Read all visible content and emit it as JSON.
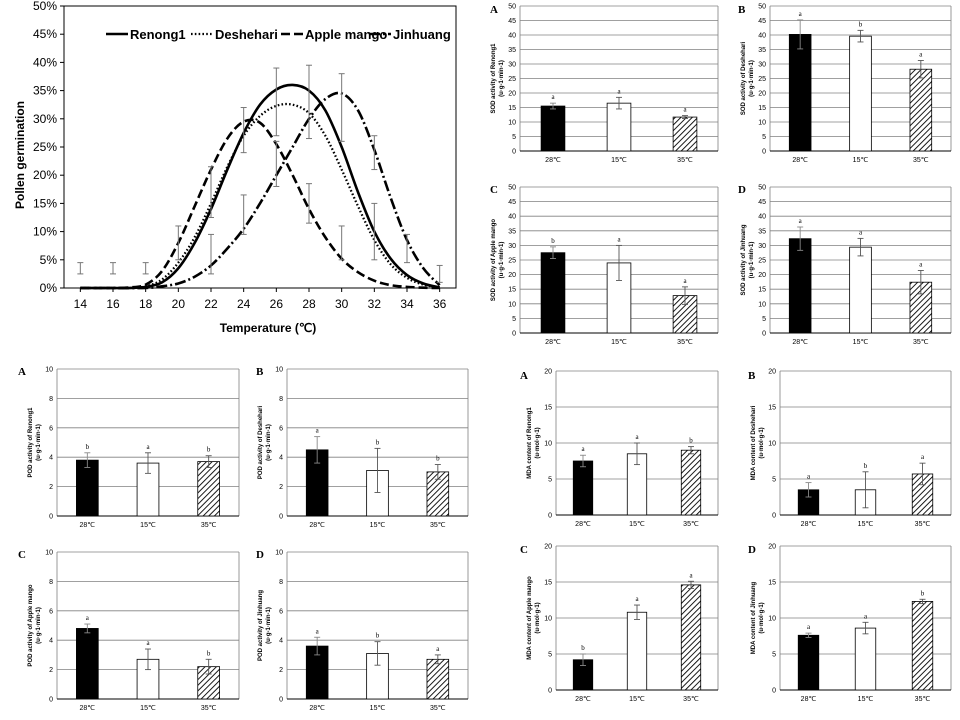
{
  "chart_data": [
    {
      "type": "line",
      "id": "germination",
      "xlabel": "Temperature (℃)",
      "ylabel": "Pollen germination",
      "xlim": [
        13,
        37
      ],
      "ylim": [
        0,
        50
      ],
      "xticks": [
        14,
        16,
        18,
        20,
        22,
        24,
        26,
        28,
        30,
        32,
        34,
        36
      ],
      "yticks": [
        0,
        5,
        10,
        15,
        20,
        25,
        30,
        35,
        40,
        45,
        50
      ],
      "ytick_labels": [
        "0%",
        "5%",
        "10%",
        "15%",
        "20%",
        "25%",
        "30%",
        "35%",
        "40%",
        "45%",
        "50%"
      ],
      "legend_position": "top",
      "series": [
        {
          "name": "Renong1",
          "style": "solid",
          "x": [
            14,
            16,
            17,
            18,
            19,
            20,
            21,
            22,
            23,
            24,
            25,
            26,
            27,
            28,
            29,
            30,
            31,
            32,
            33,
            34,
            35,
            36
          ],
          "y": [
            0,
            0,
            0,
            0.2,
            1,
            3.5,
            8,
            14,
            21,
            27.5,
            32.5,
            35.2,
            36,
            35,
            31.5,
            25,
            17,
            10,
            5.2,
            2.3,
            0.8,
            0.1
          ]
        },
        {
          "name": "Deshehari",
          "style": "dotted",
          "x": [
            14,
            16,
            17,
            18,
            19,
            20,
            21,
            22,
            23,
            24,
            25,
            26,
            27,
            28,
            29,
            30,
            31,
            32,
            33,
            34,
            35,
            36
          ],
          "y": [
            0,
            0,
            0,
            0.3,
            1.5,
            4.5,
            9,
            15,
            21.5,
            27,
            30.5,
            32.3,
            32.5,
            31,
            27,
            21,
            14.5,
            8.5,
            4.2,
            1.8,
            0.6,
            0.1
          ]
        },
        {
          "name": "Apple mango",
          "style": "dashed",
          "x": [
            14,
            16,
            17,
            18,
            19,
            20,
            21,
            22,
            23,
            24,
            25,
            26,
            27,
            28,
            29,
            30,
            31,
            32,
            33,
            34,
            35,
            36
          ],
          "y": [
            0,
            0,
            0.1,
            0.6,
            3,
            8,
            14.5,
            21,
            26.5,
            29.5,
            29.3,
            25.5,
            20,
            14,
            9,
            5.2,
            2.8,
            1.3,
            0.5,
            0.2,
            0.05,
            0
          ]
        },
        {
          "name": "Jinhuang",
          "style": "dashdot",
          "x": [
            14,
            16,
            18,
            19,
            20,
            21,
            22,
            23,
            24,
            25,
            26,
            27,
            28,
            29,
            30,
            31,
            32,
            33,
            34,
            35,
            36
          ],
          "y": [
            0,
            0,
            0,
            0.3,
            0.8,
            2,
            4,
            7,
            10.5,
            15,
            20,
            25,
            30,
            33.5,
            34.5,
            31.5,
            24.5,
            16,
            8.5,
            3.5,
            0.5
          ]
        }
      ],
      "error_bars": [
        {
          "x": 14,
          "y": 3.5,
          "err": 1
        },
        {
          "x": 16,
          "y": 3.5,
          "err": 1
        },
        {
          "x": 18,
          "y": 3.5,
          "err": 1
        },
        {
          "x": 20,
          "y": 8,
          "err": 3
        },
        {
          "x": 22,
          "y": 17,
          "err": 4.5
        },
        {
          "x": 22,
          "y": 6,
          "err": 3.5
        },
        {
          "x": 24,
          "y": 28,
          "err": 4
        },
        {
          "x": 24,
          "y": 13,
          "err": 3.5
        },
        {
          "x": 26,
          "y": 33,
          "err": 6
        },
        {
          "x": 26,
          "y": 22,
          "err": 4
        },
        {
          "x": 28,
          "y": 33,
          "err": 6.5
        },
        {
          "x": 28,
          "y": 15,
          "err": 3.5
        },
        {
          "x": 30,
          "y": 32,
          "err": 6
        },
        {
          "x": 30,
          "y": 8,
          "err": 3
        },
        {
          "x": 32,
          "y": 24,
          "err": 3
        },
        {
          "x": 32,
          "y": 10,
          "err": 5
        },
        {
          "x": 34,
          "y": 7,
          "err": 2.5
        },
        {
          "x": 36,
          "y": 2.5,
          "err": 1.5
        }
      ]
    },
    {
      "type": "bar",
      "id": "sod-a",
      "panel": "A",
      "ylabel": "SOD activity of Renong1 (u·g-1·min-1)",
      "categories": [
        "28℃",
        "15℃",
        "35℃"
      ],
      "values": [
        15.5,
        16.5,
        11.7
      ],
      "errors": [
        1.0,
        2.0,
        0.5
      ],
      "letters": [
        "a",
        "a",
        "a"
      ],
      "ylim": [
        0,
        50
      ],
      "yticks": [
        0,
        5,
        10,
        15,
        20,
        25,
        30,
        35,
        40,
        45,
        50
      ]
    },
    {
      "type": "bar",
      "id": "sod-b",
      "panel": "B",
      "ylabel": "SOD activity of Deshehari (u·g-1·min-1)",
      "categories": [
        "28℃",
        "15℃",
        "35℃"
      ],
      "values": [
        40.2,
        39.6,
        28.2
      ],
      "errors": [
        5.0,
        2.0,
        3.0
      ],
      "letters": [
        "a",
        "b",
        "a"
      ],
      "ylim": [
        0,
        50
      ],
      "yticks": [
        0,
        5,
        10,
        15,
        20,
        25,
        30,
        35,
        40,
        45,
        50
      ]
    },
    {
      "type": "bar",
      "id": "sod-c",
      "panel": "C",
      "ylabel": "SOD activity of Apple mango (u·g-1·min-1)",
      "categories": [
        "28℃",
        "15℃",
        "35℃"
      ],
      "values": [
        27.5,
        24.0,
        12.8
      ],
      "errors": [
        2.0,
        6.0,
        3.0
      ],
      "letters": [
        "b",
        "a",
        "a"
      ],
      "ylim": [
        0,
        50
      ],
      "yticks": [
        0,
        5,
        10,
        15,
        20,
        25,
        30,
        35,
        40,
        45,
        50
      ]
    },
    {
      "type": "bar",
      "id": "sod-d",
      "panel": "D",
      "ylabel": "SOD activity of Jinhuang (u·g-1·min-1)",
      "categories": [
        "28℃",
        "15℃",
        "35℃"
      ],
      "values": [
        32.3,
        29.4,
        17.4
      ],
      "errors": [
        4.0,
        3.0,
        4.0
      ],
      "letters": [
        "a",
        "a",
        "a"
      ],
      "ylim": [
        0,
        50
      ],
      "yticks": [
        0,
        5,
        10,
        15,
        20,
        25,
        30,
        35,
        40,
        45,
        50
      ]
    },
    {
      "type": "bar",
      "id": "pod-a",
      "panel": "A",
      "ylabel": "POD activity of Renong1 (u·g-1·min-1)",
      "categories": [
        "28℃",
        "15℃",
        "35℃"
      ],
      "values": [
        3.8,
        3.6,
        3.7
      ],
      "errors": [
        0.5,
        0.7,
        0.4
      ],
      "letters": [
        "b",
        "a",
        "b"
      ],
      "ylim": [
        0,
        10
      ],
      "yticks": [
        0,
        2,
        4,
        6,
        8,
        10
      ]
    },
    {
      "type": "bar",
      "id": "pod-b",
      "panel": "B",
      "ylabel": "POD activity of Deshehari (u·g-1·min-1)",
      "categories": [
        "28℃",
        "15℃",
        "35℃"
      ],
      "values": [
        4.5,
        3.1,
        3.0
      ],
      "errors": [
        0.9,
        1.5,
        0.5
      ],
      "letters": [
        "a",
        "b",
        "b"
      ],
      "ylim": [
        0,
        10
      ],
      "yticks": [
        0,
        2,
        4,
        6,
        8,
        10
      ]
    },
    {
      "type": "bar",
      "id": "pod-c",
      "panel": "C",
      "ylabel": "POD activity of Apple mango (u·g-1·min-1)",
      "categories": [
        "28℃",
        "15℃",
        "35℃"
      ],
      "values": [
        4.8,
        2.7,
        2.2
      ],
      "errors": [
        0.3,
        0.7,
        0.5
      ],
      "letters": [
        "a",
        "a",
        "b"
      ],
      "ylim": [
        0,
        10
      ],
      "yticks": [
        0,
        2,
        4,
        6,
        8,
        10
      ]
    },
    {
      "type": "bar",
      "id": "pod-d",
      "panel": "D",
      "ylabel": "POD activity of Jinhuang (u·g-1·min-1)",
      "categories": [
        "28℃",
        "15℃",
        "35℃"
      ],
      "values": [
        3.6,
        3.1,
        2.7
      ],
      "errors": [
        0.6,
        0.8,
        0.3
      ],
      "letters": [
        "a",
        "b",
        "a"
      ],
      "ylim": [
        0,
        10
      ],
      "yticks": [
        0,
        2,
        4,
        6,
        8,
        10
      ]
    },
    {
      "type": "bar",
      "id": "mda-a",
      "panel": "A",
      "ylabel": "MDA content of Renong1 (u·mol·g-1)",
      "categories": [
        "28℃",
        "15℃",
        "35℃"
      ],
      "values": [
        7.5,
        8.5,
        9.0
      ],
      "errors": [
        0.8,
        1.5,
        0.5
      ],
      "letters": [
        "a",
        "a",
        "b"
      ],
      "ylim": [
        0,
        20
      ],
      "yticks": [
        0,
        5,
        10,
        15,
        20
      ]
    },
    {
      "type": "bar",
      "id": "mda-b",
      "panel": "B",
      "ylabel": "MDA content of Deshehari (u·mol·g-1)",
      "categories": [
        "28℃",
        "15℃",
        "35℃"
      ],
      "values": [
        3.5,
        3.5,
        5.7
      ],
      "errors": [
        1.0,
        2.5,
        1.5
      ],
      "letters": [
        "a",
        "b",
        "a"
      ],
      "ylim": [
        0,
        20
      ],
      "yticks": [
        0,
        5,
        10,
        15,
        20
      ]
    },
    {
      "type": "bar",
      "id": "mda-c",
      "panel": "C",
      "ylabel": "MDA content of Apple mango (u·mol·g-1)",
      "categories": [
        "28℃",
        "15℃",
        "35℃"
      ],
      "values": [
        4.2,
        10.8,
        14.6
      ],
      "errors": [
        0.8,
        1.0,
        0.5
      ],
      "letters": [
        "b",
        "a",
        "a"
      ],
      "ylim": [
        0,
        20
      ],
      "yticks": [
        0,
        5,
        10,
        15,
        20
      ]
    },
    {
      "type": "bar",
      "id": "mda-d",
      "panel": "D",
      "ylabel": "MDA content of Jinhuang (u·mol·g-1)",
      "categories": [
        "28℃",
        "15℃",
        "35℃"
      ],
      "values": [
        7.6,
        8.6,
        12.3
      ],
      "errors": [
        0.3,
        0.8,
        0.3
      ],
      "letters": [
        "a",
        "a",
        "b"
      ],
      "ylim": [
        0,
        20
      ],
      "yticks": [
        0,
        5,
        10,
        15,
        20
      ]
    }
  ]
}
